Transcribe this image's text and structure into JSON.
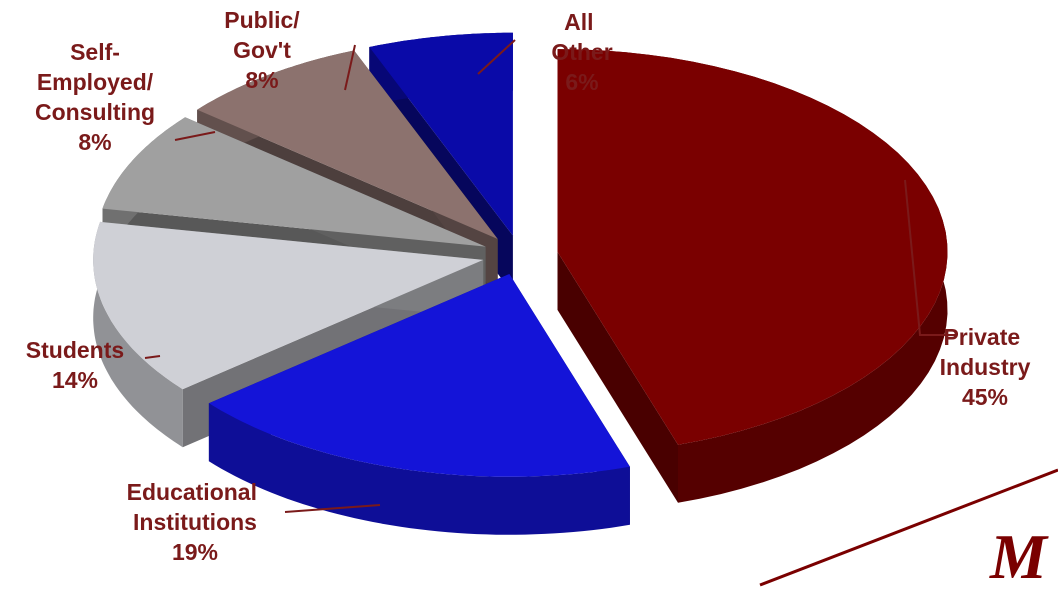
{
  "chart_data": {
    "type": "pie",
    "categories": [
      "Private Industry",
      "Educational Institutions",
      "Students",
      "Self-Employed/Consulting",
      "Public/Gov't",
      "All Other"
    ],
    "values": [
      45,
      19,
      14,
      8,
      8,
      6
    ],
    "value_labels": [
      "45%",
      "19%",
      "14%",
      "8%",
      "8%",
      "6%"
    ],
    "colors": [
      "#7a0000",
      "#1414d8",
      "#cfd0d6",
      "#a0a0a0",
      "#8c726e",
      "#0a0aa8"
    ]
  },
  "logo": "M"
}
